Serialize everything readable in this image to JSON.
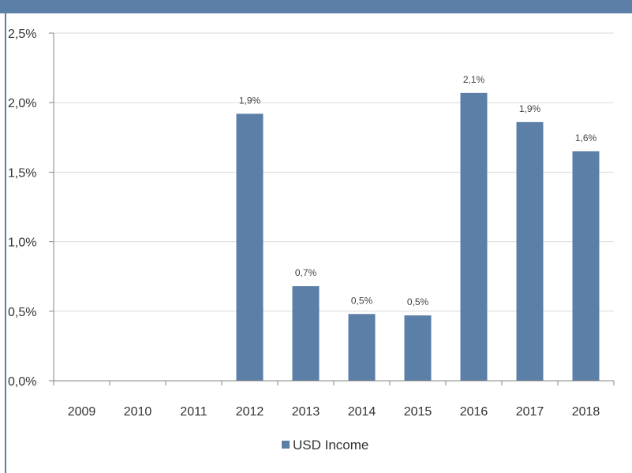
{
  "chart_data": {
    "type": "bar",
    "categories": [
      "2009",
      "2010",
      "2011",
      "2012",
      "2013",
      "2014",
      "2015",
      "2016",
      "2017",
      "2018"
    ],
    "series": [
      {
        "name": "USD Income",
        "values": [
          null,
          null,
          null,
          1.92,
          0.68,
          0.48,
          0.47,
          2.07,
          1.86,
          1.65
        ],
        "labels": [
          "",
          "",
          "",
          "1,9%",
          "0,7%",
          "0,5%",
          "0,5%",
          "2,1%",
          "1,9%",
          "1,6%"
        ]
      }
    ],
    "y_ticks": [
      "0,0%",
      "0,5%",
      "1,0%",
      "1,5%",
      "2,0%",
      "2,5%"
    ],
    "ylim": [
      0,
      2.5
    ],
    "title": "",
    "xlabel": "",
    "ylabel": "",
    "grid": true,
    "legend": "bottom-center",
    "colors": {
      "bar": "#5b7fa6",
      "frame": "#5b7fa6",
      "grid": "#d9d9d9",
      "axis": "#868686"
    }
  }
}
